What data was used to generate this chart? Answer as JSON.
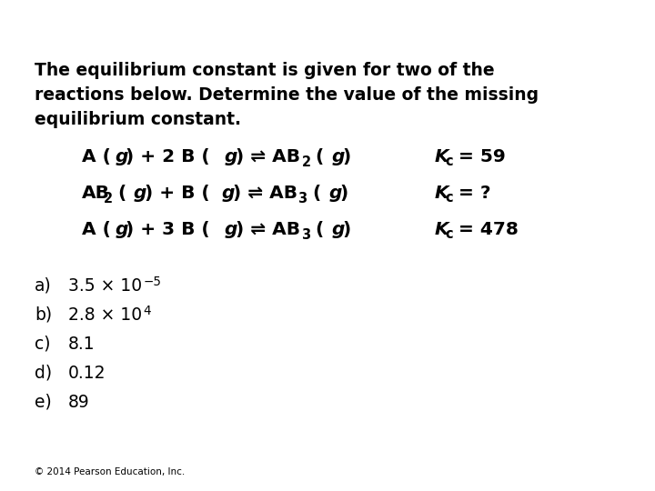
{
  "background_color": "#ffffff",
  "text_color": "#000000",
  "intro_line1": "The equilibrium constant is given for two of the",
  "intro_line2": "reactions below. Determine the value of the missing",
  "intro_line3": "equilibrium constant.",
  "intro_fontsize": 13.5,
  "reaction_fontsize": 14.5,
  "answer_fontsize": 13.5,
  "copyright": "© 2014 Pearson Education, Inc.",
  "copyright_fontsize": 7.5
}
